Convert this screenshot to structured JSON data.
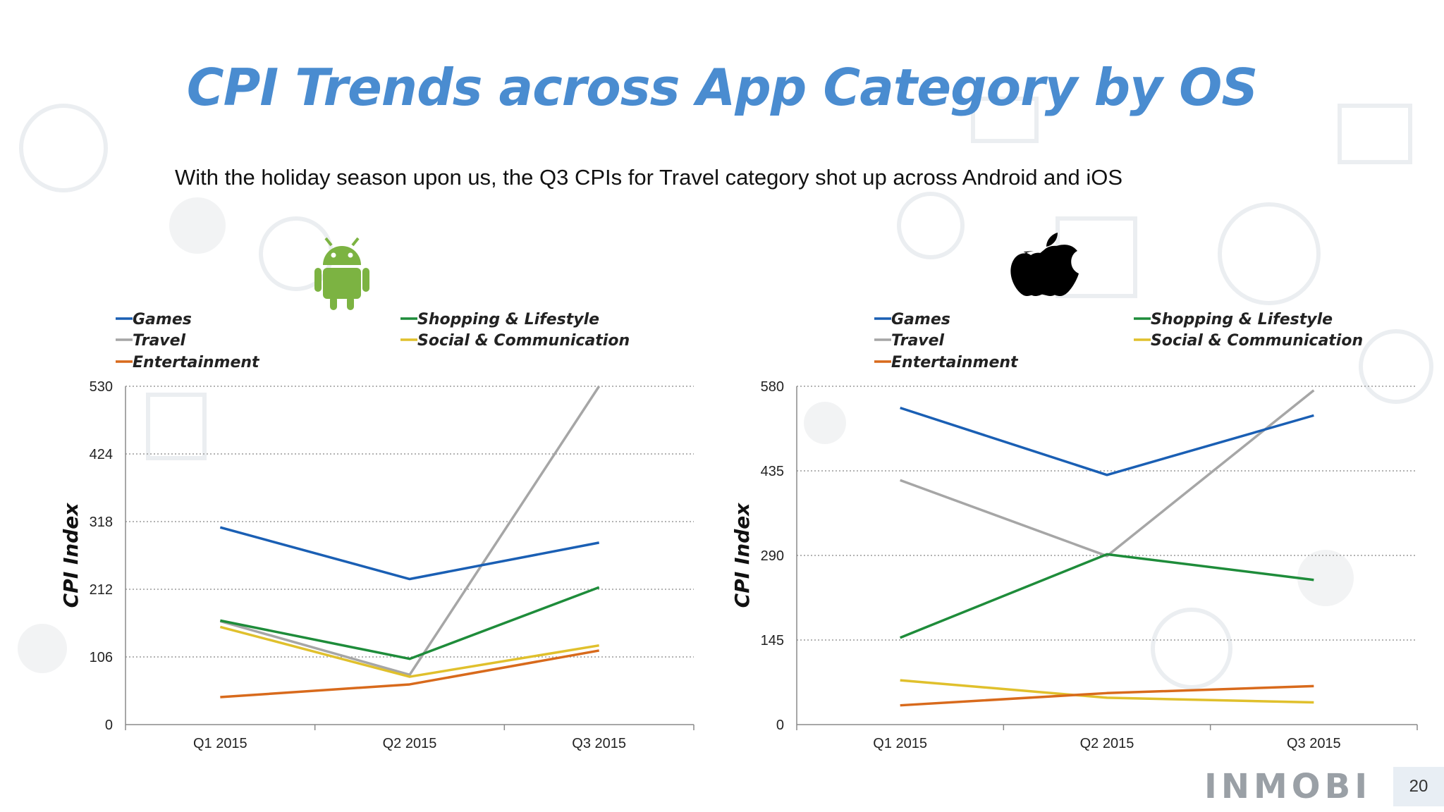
{
  "title": "CPI Trends across App Category by OS",
  "subtitle": "With the holiday season upon us, the Q3 CPIs for Travel category shot up across Android and iOS",
  "brand": "INMOBI",
  "page_number": "20",
  "icons": {
    "left": "android-icon",
    "right": "apple-icon"
  },
  "colors": {
    "title": "#4a8cd0",
    "games": "#1a5fb4",
    "shopping": "#1e8c3a",
    "travel": "#a6a6a6",
    "social": "#e0c02c",
    "entertainment": "#d86a1c"
  },
  "chart_data": [
    {
      "type": "line",
      "os": "Android",
      "categories": [
        "Q1 2015",
        "Q2 2015",
        "Q3 2015"
      ],
      "ylabel": "CPI Index",
      "ylim": [
        0,
        530
      ],
      "yticks": [
        0,
        106,
        212,
        318,
        424,
        530
      ],
      "grid": true,
      "legend_position": "top",
      "series": [
        {
          "name": "Games",
          "key": "games",
          "values": [
            309,
            228,
            285
          ]
        },
        {
          "name": "Travel",
          "key": "travel",
          "values": [
            162,
            78,
            530
          ]
        },
        {
          "name": "Entertainment",
          "key": "entertainment",
          "values": [
            43,
            63,
            116
          ]
        },
        {
          "name": "Shopping & Lifestyle",
          "key": "shopping",
          "values": [
            163,
            103,
            215
          ]
        },
        {
          "name": "Social & Communication",
          "key": "social",
          "values": [
            153,
            75,
            124
          ]
        }
      ]
    },
    {
      "type": "line",
      "os": "iOS",
      "categories": [
        "Q1 2015",
        "Q2 2015",
        "Q3 2015"
      ],
      "ylabel": "CPI Index",
      "ylim": [
        0,
        580
      ],
      "yticks": [
        0,
        145,
        290,
        435,
        580
      ],
      "grid": true,
      "legend_position": "top",
      "series": [
        {
          "name": "Games",
          "key": "games",
          "values": [
            543,
            428,
            530
          ]
        },
        {
          "name": "Travel",
          "key": "travel",
          "values": [
            419,
            289,
            573
          ]
        },
        {
          "name": "Entertainment",
          "key": "entertainment",
          "values": [
            33,
            54,
            66
          ]
        },
        {
          "name": "Shopping & Lifestyle",
          "key": "shopping",
          "values": [
            149,
            292,
            248
          ]
        },
        {
          "name": "Social & Communication",
          "key": "social",
          "values": [
            76,
            46,
            38
          ]
        }
      ]
    }
  ]
}
